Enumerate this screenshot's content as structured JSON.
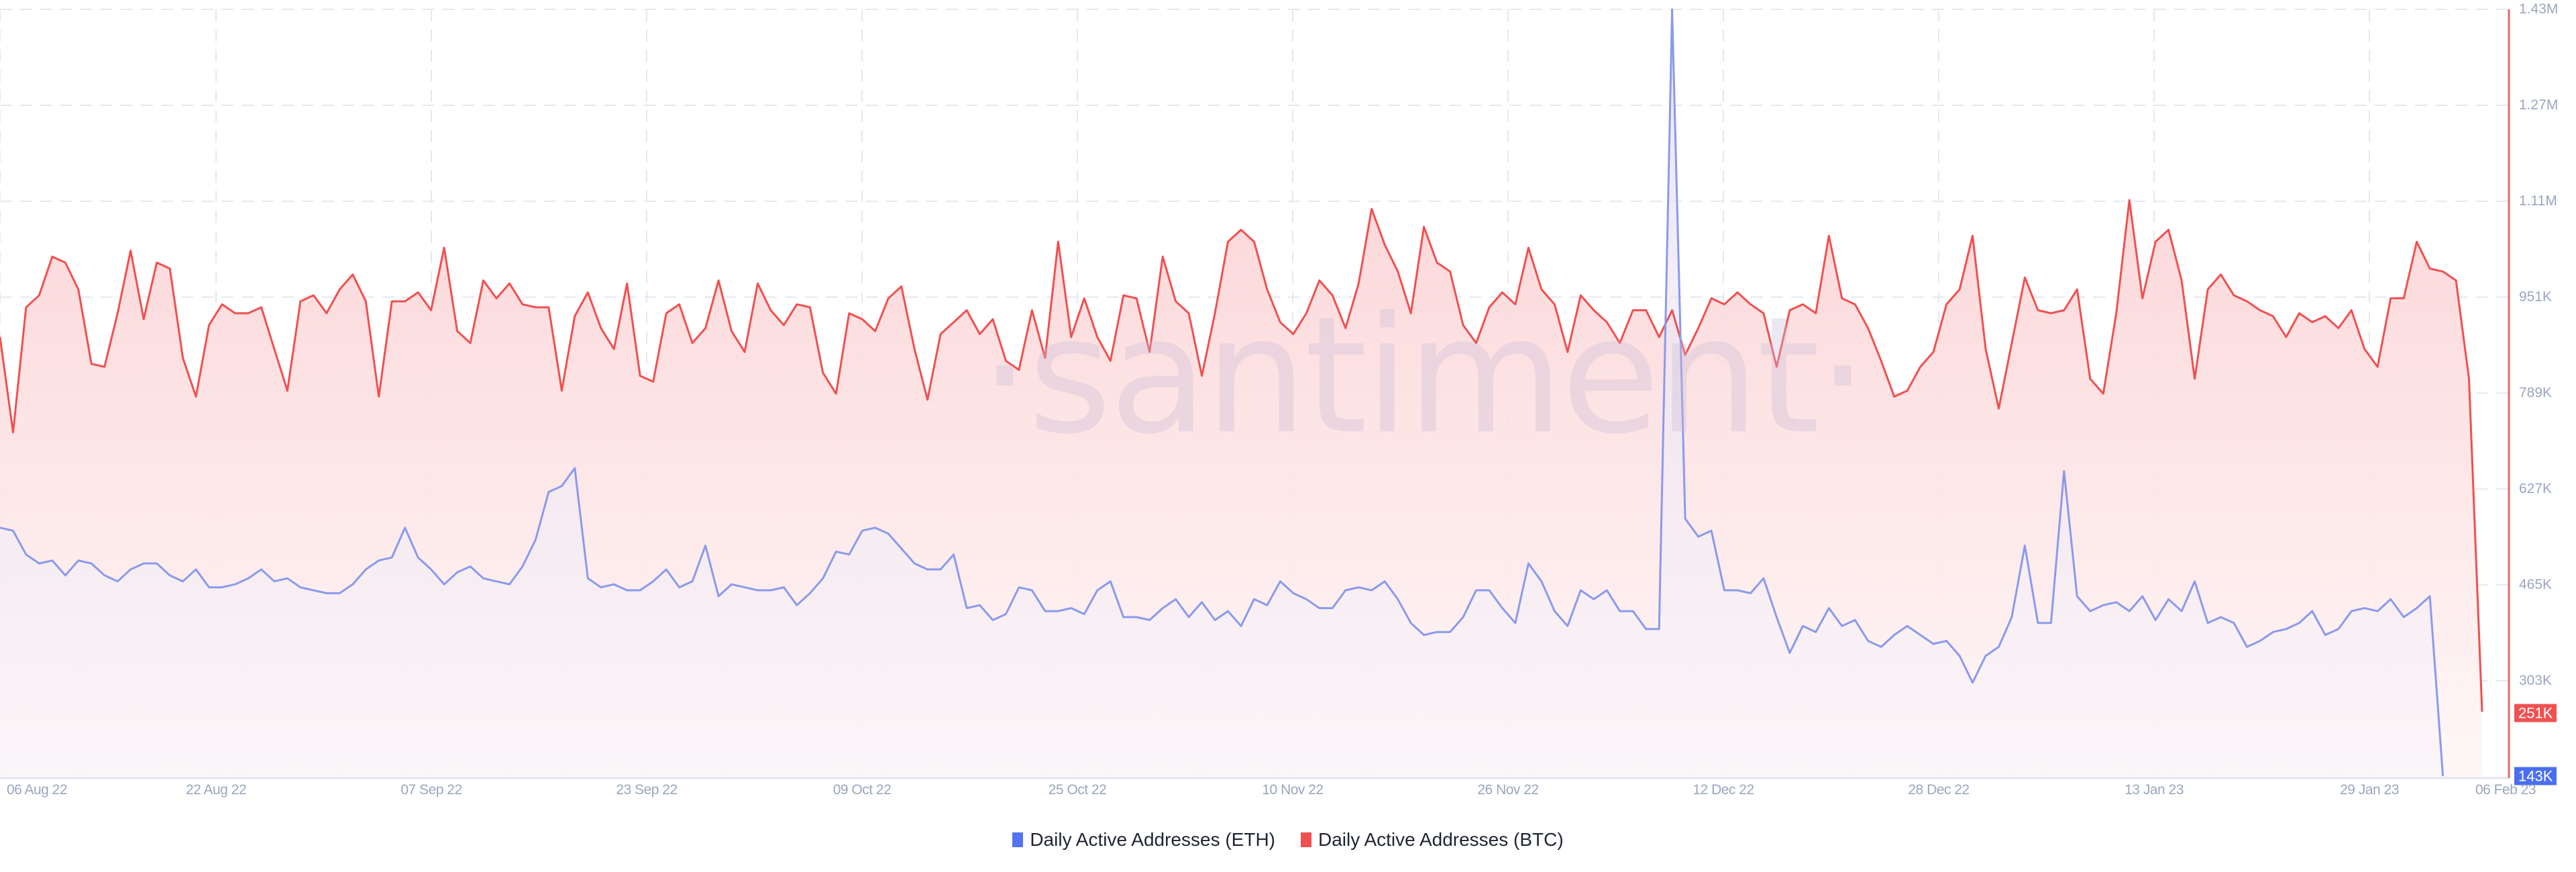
{
  "chart_data": {
    "type": "area",
    "title": "",
    "watermark": "·santiment·",
    "xlabel": "",
    "ylabel": "",
    "ylim": [
      143000,
      1430000
    ],
    "y_ticks": [
      "1.43M",
      "1.27M",
      "1.11M",
      "951K",
      "789K",
      "627K",
      "465K",
      "303K"
    ],
    "x_ticks": [
      "06 Aug 22",
      "22 Aug 22",
      "07 Sep 22",
      "23 Sep 22",
      "09 Oct 22",
      "25 Oct 22",
      "10 Nov 22",
      "26 Nov 22",
      "12 Dec 22",
      "28 Dec 22",
      "13 Jan 23",
      "29 Jan 23",
      "06 Feb 23"
    ],
    "x_start": "06 Aug 22",
    "x_end": "06 Feb 23",
    "grid": true,
    "legend_position": "bottom-center",
    "current_values": {
      "btc": "251K",
      "eth": "143K"
    },
    "series": [
      {
        "name": "Daily Active Addresses (ETH)",
        "color": "#5274f0",
        "values": [
          560,
          555,
          515,
          500,
          505,
          480,
          505,
          500,
          480,
          470,
          490,
          500,
          500,
          480,
          470,
          490,
          460,
          460,
          465,
          475,
          490,
          470,
          475,
          460,
          455,
          450,
          450,
          465,
          490,
          505,
          510,
          560,
          510,
          490,
          465,
          485,
          495,
          475,
          470,
          465,
          495,
          540,
          620,
          630,
          660,
          475,
          460,
          465,
          455,
          455,
          470,
          490,
          460,
          470,
          530,
          445,
          465,
          460,
          455,
          455,
          460,
          430,
          450,
          475,
          520,
          515,
          555,
          560,
          550,
          525,
          500,
          490,
          490,
          515,
          425,
          430,
          405,
          415,
          460,
          455,
          420,
          420,
          425,
          415,
          455,
          470,
          410,
          410,
          405,
          425,
          440,
          410,
          435,
          405,
          420,
          395,
          440,
          430,
          470,
          450,
          440,
          425,
          425,
          455,
          460,
          455,
          470,
          440,
          400,
          380,
          385,
          385,
          410,
          455,
          455,
          425,
          400,
          500,
          470,
          420,
          395,
          455,
          440,
          455,
          420,
          420,
          390,
          390,
          1430,
          575,
          545,
          555,
          455,
          455,
          450,
          475,
          410,
          350,
          395,
          385,
          425,
          395,
          405,
          370,
          360,
          380,
          395,
          380,
          365,
          370,
          345,
          300,
          345,
          360,
          410,
          530,
          400,
          400,
          655,
          445,
          420,
          430,
          435,
          420,
          445,
          405,
          440,
          420,
          470,
          400,
          410,
          400,
          360,
          370,
          385,
          390,
          400,
          420,
          380,
          390,
          420,
          425,
          420,
          440,
          410,
          425,
          445,
          143
        ]
      },
      {
        "name": "Daily Active Addresses (BTC)",
        "color": "#f05050",
        "values": [
          880,
          720,
          930,
          950,
          1015,
          1005,
          960,
          835,
          830,
          920,
          1025,
          910,
          1005,
          995,
          845,
          780,
          900,
          935,
          920,
          920,
          930,
          860,
          790,
          940,
          950,
          920,
          960,
          985,
          940,
          780,
          940,
          940,
          955,
          925,
          1030,
          890,
          870,
          975,
          945,
          970,
          935,
          930,
          930,
          790,
          915,
          955,
          895,
          860,
          970,
          815,
          805,
          920,
          935,
          870,
          895,
          975,
          890,
          855,
          970,
          925,
          900,
          935,
          930,
          820,
          785,
          920,
          910,
          890,
          945,
          965,
          860,
          775,
          885,
          905,
          925,
          885,
          910,
          840,
          825,
          925,
          845,
          1040,
          880,
          945,
          880,
          840,
          950,
          945,
          855,
          1015,
          940,
          920,
          815,
          920,
          1040,
          1060,
          1040,
          960,
          905,
          885,
          920,
          975,
          950,
          895,
          970,
          1095,
          1035,
          990,
          920,
          1065,
          1005,
          990,
          900,
          870,
          930,
          955,
          935,
          1030,
          960,
          935,
          855,
          950,
          925,
          905,
          870,
          925,
          925,
          880,
          925,
          850,
          895,
          945,
          935,
          955,
          935,
          920,
          830,
          925,
          935,
          920,
          1050,
          945,
          935,
          895,
          840,
          780,
          790,
          830,
          855,
          935,
          960,
          1050,
          860,
          760,
          870,
          980,
          925,
          920,
          925,
          960,
          810,
          785,
          920,
          1110,
          945,
          1040,
          1060,
          975,
          810,
          960,
          985,
          950,
          940,
          925,
          915,
          880,
          920,
          905,
          915,
          895,
          925,
          860,
          830,
          945,
          945,
          1040,
          995,
          990,
          975,
          810,
          251
        ]
      }
    ]
  },
  "legend": {
    "items": [
      {
        "label": "Daily Active Addresses (ETH)",
        "color": "#5274f0"
      },
      {
        "label": "Daily Active Addresses (BTC)",
        "color": "#f05050"
      }
    ]
  },
  "axis": {
    "right_labels": [
      "1.43M",
      "1.27M",
      "1.11M",
      "951K",
      "789K",
      "627K",
      "465K",
      "303K"
    ],
    "badge_btc": "251K",
    "badge_eth": "143K",
    "bottom_labels": [
      "06 Aug 22",
      "22 Aug 22",
      "07 Sep 22",
      "23 Sep 22",
      "09 Oct 22",
      "25 Oct 22",
      "10 Nov 22",
      "26 Nov 22",
      "12 Dec 22",
      "28 Dec 22",
      "13 Jan 23",
      "29 Jan 23",
      "06 Feb 23"
    ]
  }
}
